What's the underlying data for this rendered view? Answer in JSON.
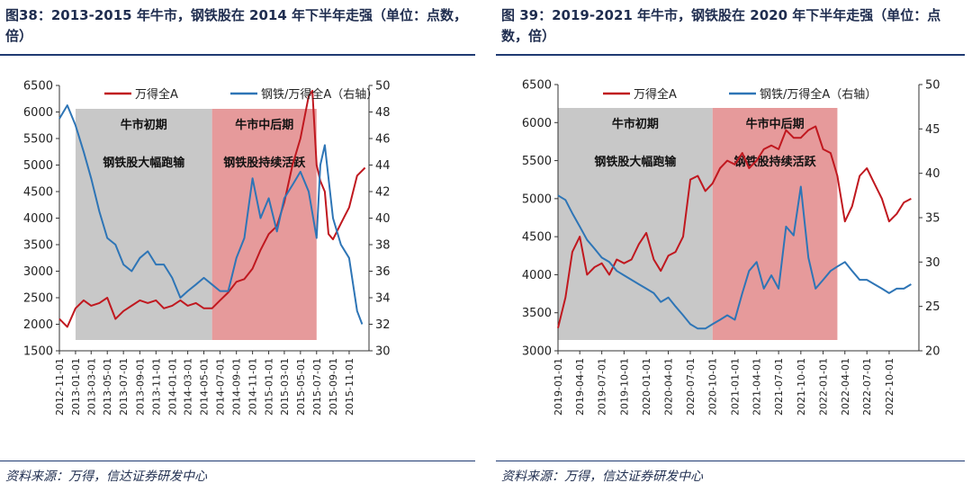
{
  "charts": [
    {
      "title": "图38：2013-2015 年牛市，钢铁股在 2014 年下半年走强（单位：点数，倍）",
      "source": "资料来源：万得，信达证券研发中心"
    },
    {
      "title": "图 39：2019-2021 年牛市，钢铁股在 2020 年下半年走强（单位：点数，倍）",
      "source": "资料来源：万得，信达证券研发中心"
    }
  ],
  "colors": {
    "red": "#c0181f",
    "blue": "#2e75b6",
    "gray_band": "#c8c8c8",
    "red_band": "#e69a9b",
    "rule": "#1f3a72"
  },
  "chart_data": [
    {
      "type": "line",
      "legend": [
        "万得全A",
        "钢铁/万得全A（右轴）"
      ],
      "legend_position": "top",
      "left_axis": {
        "min": 1500,
        "max": 6500,
        "ticks": [
          "1500",
          "2000",
          "2500",
          "3000",
          "3500",
          "4000",
          "4500",
          "5000",
          "5500",
          "6000",
          "6500"
        ]
      },
      "right_axis": {
        "min": 30,
        "max": 50,
        "ticks": [
          "30",
          "32",
          "34",
          "36",
          "38",
          "40",
          "42",
          "44",
          "46",
          "48",
          "50"
        ]
      },
      "x_ticks": [
        "2012-11-01",
        "2013-01-01",
        "2013-03-01",
        "2013-05-01",
        "2013-07-01",
        "2013-09-01",
        "2013-11-01",
        "2014-01-01",
        "2014-03-01",
        "2014-05-01",
        "2014-07-01",
        "2014-09-01",
        "2014-11-01",
        "2015-01-01",
        "2015-03-01",
        "2015-05-01",
        "2015-07-01",
        "2015-09-01",
        "2015-11-01"
      ],
      "bands": [
        {
          "from": "2013-01-01",
          "to": "2014-06-01",
          "color": "gray",
          "label1": "牛市初期",
          "label2": "钢铁股大幅跑输"
        },
        {
          "from": "2014-06-01",
          "to": "2015-07-01",
          "color": "red",
          "label1": "牛市中后期",
          "label2": "钢铁股持续活跃"
        }
      ],
      "series": [
        {
          "name": "万得全A",
          "axis": "left",
          "color": "red",
          "x": [
            "2012-11-01",
            "2012-12-01",
            "2013-01-01",
            "2013-02-01",
            "2013-03-01",
            "2013-04-01",
            "2013-05-01",
            "2013-06-01",
            "2013-07-01",
            "2013-08-01",
            "2013-09-01",
            "2013-10-01",
            "2013-11-01",
            "2013-12-01",
            "2014-01-01",
            "2014-02-01",
            "2014-03-01",
            "2014-04-01",
            "2014-05-01",
            "2014-06-01",
            "2014-07-01",
            "2014-08-01",
            "2014-09-01",
            "2014-10-01",
            "2014-11-01",
            "2014-12-01",
            "2015-01-01",
            "2015-02-01",
            "2015-03-01",
            "2015-04-01",
            "2015-05-01",
            "2015-06-01",
            "2015-06-15",
            "2015-07-01",
            "2015-07-15",
            "2015-08-01",
            "2015-08-15",
            "2015-09-01",
            "2015-10-01",
            "2015-11-01",
            "2015-12-01",
            "2015-12-31"
          ],
          "values": [
            2100,
            1950,
            2300,
            2450,
            2350,
            2400,
            2500,
            2100,
            2250,
            2350,
            2450,
            2400,
            2450,
            2300,
            2350,
            2450,
            2350,
            2400,
            2300,
            2300,
            2450,
            2600,
            2800,
            2850,
            3050,
            3400,
            3700,
            3850,
            4300,
            5000,
            5500,
            6300,
            6400,
            5000,
            4700,
            4500,
            3700,
            3600,
            3900,
            4200,
            4800,
            4950
          ]
        },
        {
          "name": "钢铁/万得全A（右轴）",
          "axis": "right",
          "color": "blue",
          "x": [
            "2012-11-01",
            "2012-12-01",
            "2013-01-01",
            "2013-02-01",
            "2013-03-01",
            "2013-04-01",
            "2013-05-01",
            "2013-06-01",
            "2013-07-01",
            "2013-08-01",
            "2013-09-01",
            "2013-10-01",
            "2013-11-01",
            "2013-12-01",
            "2014-01-01",
            "2014-02-01",
            "2014-03-01",
            "2014-04-01",
            "2014-05-01",
            "2014-06-01",
            "2014-07-01",
            "2014-08-01",
            "2014-09-01",
            "2014-10-01",
            "2014-11-01",
            "2014-12-01",
            "2015-01-01",
            "2015-02-01",
            "2015-03-01",
            "2015-04-01",
            "2015-05-01",
            "2015-06-01",
            "2015-07-01",
            "2015-07-15",
            "2015-08-01",
            "2015-09-01",
            "2015-10-01",
            "2015-11-01",
            "2015-12-01",
            "2015-12-20"
          ],
          "values": [
            47.5,
            48.5,
            47.0,
            45.0,
            43.0,
            40.5,
            38.5,
            38.0,
            36.5,
            36.0,
            37.0,
            37.5,
            36.5,
            36.5,
            35.5,
            34.0,
            34.5,
            35.0,
            35.5,
            35.0,
            34.5,
            34.5,
            37.0,
            38.5,
            43.0,
            40.0,
            41.5,
            39.0,
            41.5,
            42.5,
            43.5,
            42.0,
            38.5,
            44.0,
            45.5,
            40.0,
            38.0,
            37.0,
            33.0,
            32.0
          ]
        }
      ]
    },
    {
      "type": "line",
      "legend": [
        "万得全A",
        "钢铁/万得全A（右轴）"
      ],
      "legend_position": "top",
      "left_axis": {
        "min": 3000,
        "max": 6500,
        "ticks": [
          "3000",
          "3500",
          "4000",
          "4500",
          "5000",
          "5500",
          "6000",
          "6500"
        ]
      },
      "right_axis": {
        "min": 20,
        "max": 50,
        "ticks": [
          "20",
          "25",
          "30",
          "35",
          "40",
          "45",
          "50"
        ]
      },
      "x_ticks": [
        "2019-01-01",
        "2019-04-01",
        "2019-07-01",
        "2019-10-01",
        "2020-01-01",
        "2020-04-01",
        "2020-07-01",
        "2020-10-01",
        "2021-01-01",
        "2021-04-01",
        "2021-07-01",
        "2021-10-01",
        "2022-01-01",
        "2022-04-01",
        "2022-07-01",
        "2022-10-01"
      ],
      "bands": [
        {
          "from": "2019-01-01",
          "to": "2020-10-01",
          "color": "gray",
          "label1": "牛市初期",
          "label2": "钢铁股大幅跑输"
        },
        {
          "from": "2020-10-01",
          "to": "2022-03-01",
          "color": "red",
          "label1": "牛市中后期",
          "label2": "钢铁股持续活跃"
        }
      ],
      "series": [
        {
          "name": "万得全A",
          "axis": "left",
          "color": "red",
          "x": [
            "2019-01-01",
            "2019-02-01",
            "2019-03-01",
            "2019-04-01",
            "2019-05-01",
            "2019-06-01",
            "2019-07-01",
            "2019-08-01",
            "2019-09-01",
            "2019-10-01",
            "2019-11-01",
            "2019-12-01",
            "2020-01-01",
            "2020-02-01",
            "2020-03-01",
            "2020-04-01",
            "2020-05-01",
            "2020-06-01",
            "2020-07-01",
            "2020-08-01",
            "2020-09-01",
            "2020-10-01",
            "2020-11-01",
            "2020-12-01",
            "2021-01-01",
            "2021-02-01",
            "2021-03-01",
            "2021-04-01",
            "2021-05-01",
            "2021-06-01",
            "2021-07-01",
            "2021-08-01",
            "2021-09-01",
            "2021-10-01",
            "2021-11-01",
            "2021-12-01",
            "2022-01-01",
            "2022-02-01",
            "2022-03-01",
            "2022-04-01",
            "2022-05-01",
            "2022-06-01",
            "2022-07-01",
            "2022-08-01",
            "2022-09-01",
            "2022-10-01",
            "2022-11-01",
            "2022-12-01",
            "2022-12-31"
          ],
          "values": [
            3300,
            3700,
            4300,
            4500,
            4000,
            4100,
            4150,
            4000,
            4200,
            4150,
            4200,
            4400,
            4550,
            4200,
            4050,
            4250,
            4300,
            4500,
            5250,
            5300,
            5100,
            5200,
            5400,
            5500,
            5450,
            5600,
            5400,
            5500,
            5650,
            5700,
            5650,
            5900,
            5800,
            5800,
            5900,
            5950,
            5650,
            5600,
            5300,
            4700,
            4900,
            5300,
            5400,
            5200,
            5000,
            4700,
            4800,
            4950,
            5000
          ]
        },
        {
          "name": "钢铁/万得全A（右轴）",
          "axis": "right",
          "color": "blue",
          "x": [
            "2019-01-01",
            "2019-02-01",
            "2019-03-01",
            "2019-04-01",
            "2019-05-01",
            "2019-06-01",
            "2019-07-01",
            "2019-08-01",
            "2019-09-01",
            "2019-10-01",
            "2019-11-01",
            "2019-12-01",
            "2020-01-01",
            "2020-02-01",
            "2020-03-01",
            "2020-04-01",
            "2020-05-01",
            "2020-06-01",
            "2020-07-01",
            "2020-08-01",
            "2020-09-01",
            "2020-10-01",
            "2020-11-01",
            "2020-12-01",
            "2021-01-01",
            "2021-02-01",
            "2021-03-01",
            "2021-04-01",
            "2021-05-01",
            "2021-06-01",
            "2021-07-01",
            "2021-08-01",
            "2021-09-01",
            "2021-10-01",
            "2021-11-01",
            "2021-12-01",
            "2022-01-01",
            "2022-02-01",
            "2022-03-01",
            "2022-04-01",
            "2022-05-01",
            "2022-06-01",
            "2022-07-01",
            "2022-08-01",
            "2022-09-01",
            "2022-10-01",
            "2022-11-01",
            "2022-12-01",
            "2022-12-31"
          ],
          "values": [
            37.5,
            37.0,
            35.5,
            34.0,
            32.5,
            31.5,
            30.5,
            30.0,
            29.0,
            28.5,
            28.0,
            27.5,
            27.0,
            26.5,
            25.5,
            26.0,
            25.0,
            24.0,
            23.0,
            22.5,
            22.5,
            23.0,
            23.5,
            24.0,
            23.5,
            26.5,
            29.0,
            30.0,
            27.0,
            28.5,
            27.0,
            34.0,
            33.0,
            38.5,
            30.5,
            27.0,
            28.0,
            29.0,
            29.5,
            30.0,
            29.0,
            28.0,
            28.0,
            27.5,
            27.0,
            26.5,
            27.0,
            27.0,
            27.5
          ]
        }
      ]
    }
  ]
}
